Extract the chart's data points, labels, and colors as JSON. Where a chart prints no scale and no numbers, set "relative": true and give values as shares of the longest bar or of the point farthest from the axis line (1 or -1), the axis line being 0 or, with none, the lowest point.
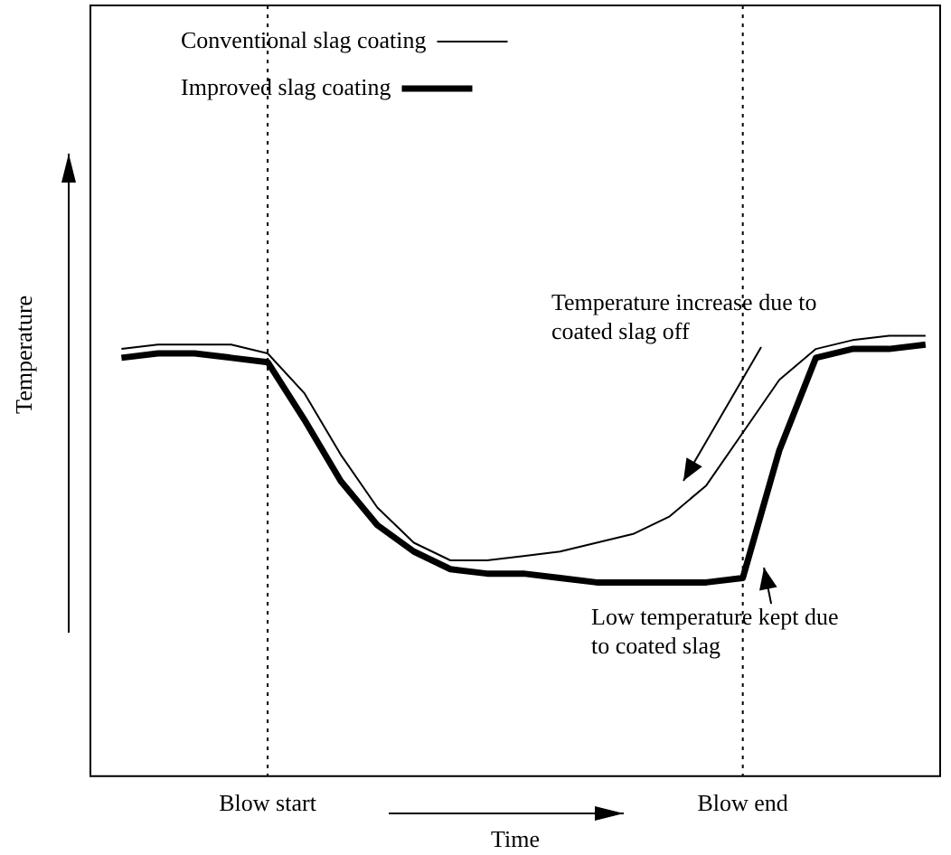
{
  "chart_data": {
    "type": "line",
    "xlabel": "Time",
    "ylabel": "Temperature",
    "relative": true,
    "legend": "top left",
    "marker": "none",
    "categories": [
      null,
      null,
      null,
      null,
      "Blow start",
      null,
      null,
      null,
      null,
      null,
      null,
      null,
      null,
      null,
      null,
      null,
      null,
      "Blow end",
      null,
      null,
      null,
      null,
      null
    ],
    "series": [
      {
        "name": "Conventional slag coating",
        "color": "#000000",
        "values": [
          0.97,
          0.98,
          0.98,
          0.98,
          0.96,
          0.87,
          0.73,
          0.61,
          0.53,
          0.49,
          0.49,
          0.5,
          0.51,
          0.53,
          0.55,
          0.59,
          0.66,
          0.78,
          0.9,
          0.97,
          0.99,
          1,
          1
        ]
      },
      {
        "name": "Improved slag coating",
        "color": "#000000",
        "values": [
          0.95,
          0.96,
          0.96,
          0.95,
          0.94,
          0.81,
          0.67,
          0.57,
          0.51,
          0.47,
          0.46,
          0.46,
          0.45,
          0.44,
          0.44,
          0.44,
          0.44,
          0.45,
          0.74,
          0.95,
          0.97,
          0.97,
          0.98
        ]
      }
    ],
    "ref_lines": [
      {
        "axis": "x",
        "value": "Blow start",
        "line_style": "dotted"
      },
      {
        "axis": "x",
        "value": "Blow end",
        "line_style": "dotted"
      }
    ],
    "annotations": [
      "Temperature increase due to coated slag off",
      "Low temperature kept due to coated slag"
    ]
  }
}
